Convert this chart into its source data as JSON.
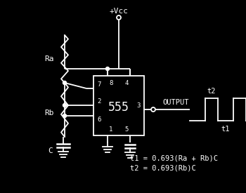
{
  "bg_color": "#000000",
  "fg_color": "#ffffff",
  "chip_label": "555",
  "vcc_label": "+Vcc",
  "output_label": "OUTPUT",
  "ra_label": "Ra",
  "rb_label": "Rb",
  "c_label": "C",
  "formula1": "t1 = 0.693(Ra + Rb)C",
  "formula2": "t2 = 0.693(Rb)C",
  "t1_label": "t1",
  "t2_label": "t2"
}
